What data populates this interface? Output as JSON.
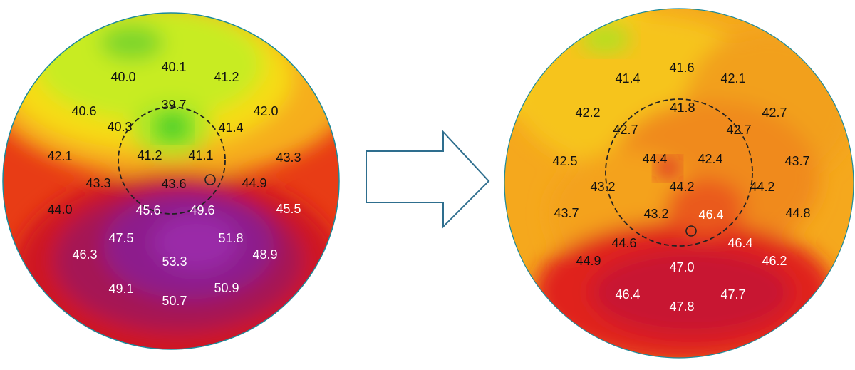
{
  "colors": {
    "green": "#3fcc2a",
    "yellow": "#f2f21a",
    "orange": "#f5a51c",
    "red": "#d4141a",
    "purple": "#8a1a8c",
    "arrow_outline": "#2e6e8e",
    "text_on_light": "#111111",
    "text_on_dark": "#ffffff"
  },
  "icons": {
    "transition": "right-arrow-icon",
    "marker": "circle-marker-icon"
  },
  "maps": {
    "before": {
      "values": [
        "40.1",
        "40.0",
        "41.2",
        "39.7",
        "40.6",
        "42.0",
        "40.3",
        "41.4",
        "42.1",
        "41.2",
        "41.1",
        "43.3",
        "43.3",
        "43.6",
        "44.9",
        "44.0",
        "45.6",
        "49.6",
        "45.5",
        "47.5",
        "51.8",
        "46.3",
        "53.3",
        "48.9",
        "49.1",
        "50.9",
        "50.7"
      ]
    },
    "after": {
      "values": [
        "41.6",
        "41.4",
        "42.1",
        "41.8",
        "42.2",
        "42.7",
        "42.7",
        "42.7",
        "42.5",
        "44.4",
        "42.4",
        "43.7",
        "43.2",
        "44.2",
        "44.2",
        "43.7",
        "44.8",
        "43.2",
        "46.4",
        "44.6",
        "46.4",
        "44.9",
        "47.0",
        "46.2",
        "46.4",
        "47.7",
        "47.8"
      ]
    }
  }
}
